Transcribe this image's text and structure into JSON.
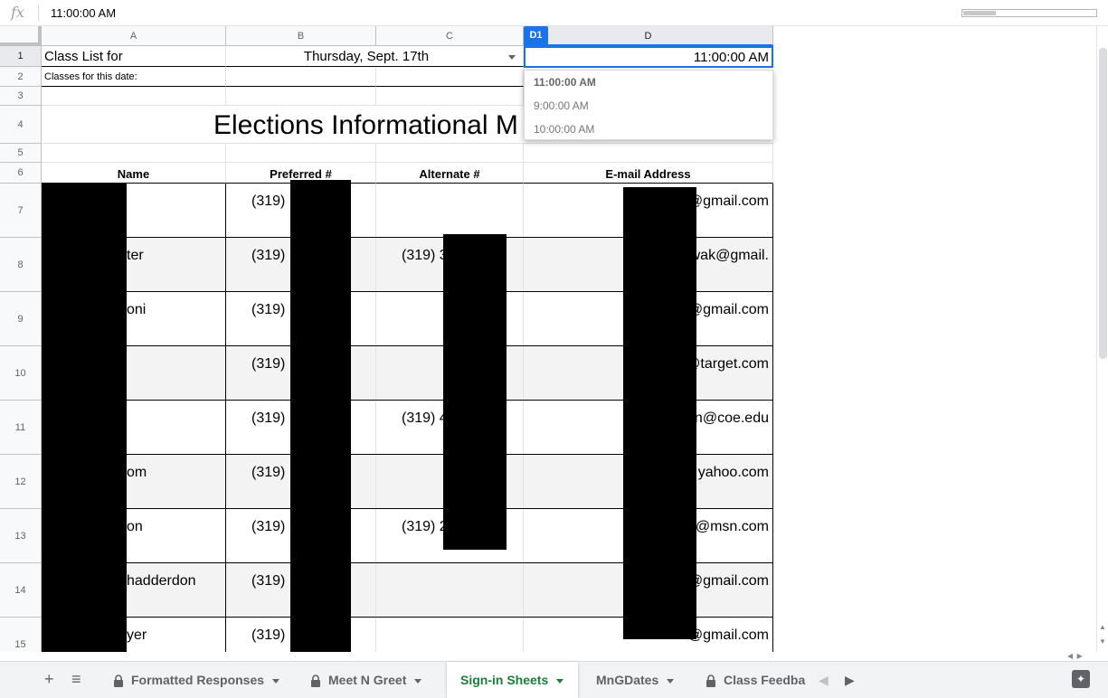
{
  "formula_bar": {
    "fx_label": "fx",
    "value": "11:00:00 AM"
  },
  "columns": {
    "A": "A",
    "B": "B",
    "C": "C",
    "D": "D",
    "selected_badge": "D1"
  },
  "rows": [
    "1",
    "2",
    "3",
    "4",
    "5",
    "6",
    "7",
    "8",
    "9",
    "10",
    "11",
    "12",
    "13",
    "14",
    "15"
  ],
  "sheet": {
    "a1": "Class List for",
    "b1": "Thursday, Sept. 17th",
    "d1": "11:00:00 AM",
    "a2": "Classes for this date:",
    "title": "Elections Informational M",
    "headers": {
      "name": "Name",
      "preferred": "Preferred #",
      "alternate": "Alternate #",
      "email": "E-mail Address"
    },
    "data_rows": [
      {
        "name": "",
        "preferred": "(319)",
        "alternate": "",
        "email": "@gmail.com"
      },
      {
        "name": "ter",
        "preferred": "(319)",
        "alternate": "(319) 3",
        "email": "wak@gmail."
      },
      {
        "name": "oni",
        "preferred": "(319)",
        "alternate": "",
        "email": "c           @gmail.com"
      },
      {
        "name": "",
        "preferred": "(319)",
        "alternate": "",
        "email": "Ali           @target.com"
      },
      {
        "name": "",
        "preferred": "(319)",
        "alternate": "(319) 4",
        "email": "n@coe.edu"
      },
      {
        "name": "om",
        "preferred": "(319)",
        "alternate": "",
        "email": "n           yahoo.com"
      },
      {
        "name": "on",
        "preferred": "(319)",
        "alternate": "(319) 2",
        "email": "ro           @msn.com"
      },
      {
        "name": "hadderdon",
        "preferred": "(319)",
        "alternate": "",
        "email": "tjc           @gmail.com"
      },
      {
        "name": "yer",
        "preferred": "(319)",
        "alternate": "",
        "email": "Go           @gmail.com"
      }
    ]
  },
  "dropdown": {
    "options": [
      "11:00:00 AM",
      "9:00:00 AM",
      "10:00:00 AM"
    ]
  },
  "tabs": {
    "add_label": "+",
    "list_label": "≡",
    "items": [
      {
        "label": "Formatted Responses",
        "locked": true
      },
      {
        "label": "Meet N Greet",
        "locked": true
      },
      {
        "label": "Sign-in Sheets",
        "locked": false
      },
      {
        "label": "MnGDates",
        "locked": false
      },
      {
        "label": "Class Feedba",
        "locked": true
      }
    ]
  },
  "colors": {
    "accent": "#1a73e8",
    "active_tab": "#188038",
    "zebra": "#f3f3f3"
  }
}
